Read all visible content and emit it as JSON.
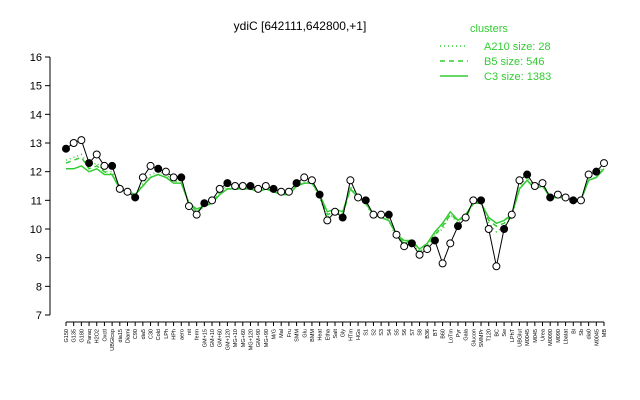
{
  "chart_data": {
    "type": "line",
    "title": "ydiC [642111,642800,+1]",
    "legend_title": "clusters",
    "legend": "top-right",
    "categories": [
      "G150",
      "G135",
      "G180",
      "Paraq",
      "H2O2",
      "Oxctl",
      "UBGlcsp",
      "dia15",
      "Diami",
      "C90",
      "dia5",
      "C30",
      "Cold",
      "LPh",
      "HPh",
      "aero",
      "nit",
      "ferm",
      "GM+15",
      "GM+10",
      "GM+60",
      "GM+120",
      "MG+10",
      "MG+60",
      "MG+120",
      "GM+90",
      "MG+90",
      "M/G",
      "Mal",
      "Fru",
      "SMM",
      "Glu",
      "BMM",
      "Heat",
      "Etha",
      "Salt",
      "Gly",
      "HTm",
      "HGs",
      "S1",
      "S2",
      "S3",
      "S4",
      "S5",
      "S6",
      "S7",
      "S8",
      "B36",
      "BT",
      "B60",
      "LoTm",
      "Pyr",
      "Gala",
      "Glucon",
      "SMMPr",
      "T120",
      "BC",
      "Sw",
      "LPhT",
      "UBGlut",
      "M0045",
      "M045",
      "Urea",
      "M0090",
      "M090",
      "Lbatat",
      "Bl",
      "Sb",
      "dia0",
      "M0045",
      "MB"
    ],
    "color": "#000000",
    "values": [
      12.8,
      13.0,
      13.1,
      12.3,
      12.6,
      12.2,
      12.2,
      11.4,
      11.3,
      11.1,
      11.8,
      12.2,
      12.1,
      12.0,
      11.8,
      11.8,
      10.8,
      10.5,
      10.9,
      11.0,
      11.4,
      11.6,
      11.5,
      11.5,
      11.5,
      11.4,
      11.5,
      11.4,
      11.3,
      11.3,
      11.6,
      11.8,
      11.7,
      11.2,
      10.3,
      10.6,
      10.4,
      11.7,
      11.1,
      11.0,
      10.5,
      10.5,
      10.5,
      9.8,
      9.4,
      9.5,
      9.1,
      9.3,
      9.6,
      8.8,
      9.5,
      10.1,
      10.4,
      11.0,
      11.0,
      10.0,
      8.7,
      10.0,
      10.5,
      11.7,
      11.9,
      11.5,
      11.6,
      11.1,
      11.2,
      11.1,
      11.0,
      11.0,
      11.9,
      12.0,
      12.3
    ],
    "series": [
      {
        "name": "A210 size: 28",
        "color": "#33cc33",
        "linestyle": "dotted",
        "values": [
          12.4,
          12.5,
          12.6,
          12.2,
          12.3,
          12.0,
          12.0,
          11.5,
          11.3,
          11.2,
          11.6,
          11.9,
          12.0,
          11.9,
          11.7,
          11.7,
          10.9,
          10.6,
          10.8,
          10.9,
          11.3,
          11.5,
          11.5,
          11.5,
          11.5,
          11.4,
          11.5,
          11.4,
          11.2,
          11.3,
          11.6,
          11.7,
          11.6,
          11.1,
          10.4,
          10.6,
          10.5,
          11.5,
          11.1,
          10.9,
          10.4,
          10.4,
          10.3,
          9.7,
          9.5,
          9.5,
          9.2,
          9.4,
          9.8,
          10.0,
          10.5,
          10.2,
          10.4,
          10.9,
          10.9,
          10.2,
          9.9,
          10.1,
          10.4,
          11.5,
          11.8,
          11.5,
          11.6,
          11.1,
          11.1,
          11.1,
          11.0,
          11.0,
          11.8,
          11.9,
          12.2
        ]
      },
      {
        "name": "B5 size: 546",
        "color": "#33cc33",
        "linestyle": "dashed",
        "values": [
          12.3,
          12.4,
          12.5,
          12.1,
          12.2,
          12.0,
          11.9,
          11.4,
          11.3,
          11.2,
          11.5,
          11.8,
          11.9,
          11.8,
          11.7,
          11.6,
          10.9,
          10.6,
          10.8,
          10.9,
          11.3,
          11.4,
          11.4,
          11.4,
          11.4,
          11.3,
          11.4,
          11.3,
          11.2,
          11.2,
          11.5,
          11.6,
          11.6,
          11.2,
          10.5,
          10.6,
          10.5,
          11.4,
          11.1,
          10.9,
          10.5,
          10.4,
          10.3,
          9.8,
          9.5,
          9.6,
          9.2,
          9.4,
          9.8,
          10.1,
          10.5,
          10.3,
          10.4,
          10.9,
          10.9,
          10.3,
          10.1,
          10.2,
          10.5,
          11.4,
          11.7,
          11.4,
          11.5,
          11.1,
          11.1,
          11.1,
          11.0,
          11.0,
          11.7,
          11.8,
          12.1
        ]
      },
      {
        "name": "C3 size: 1383",
        "color": "#33cc33",
        "linestyle": "solid",
        "values": [
          12.1,
          12.1,
          12.2,
          12.0,
          12.1,
          11.9,
          11.9,
          11.4,
          11.3,
          11.2,
          11.5,
          11.8,
          11.9,
          11.8,
          11.6,
          11.6,
          10.9,
          10.7,
          10.8,
          10.9,
          11.2,
          11.4,
          11.4,
          11.4,
          11.4,
          11.3,
          11.4,
          11.3,
          11.2,
          11.2,
          11.5,
          11.6,
          11.6,
          11.2,
          10.6,
          10.7,
          10.6,
          11.4,
          11.1,
          10.9,
          10.5,
          10.4,
          10.3,
          9.8,
          9.6,
          9.6,
          9.3,
          9.5,
          9.9,
          10.2,
          10.6,
          10.3,
          10.5,
          10.9,
          10.9,
          10.4,
          10.2,
          10.3,
          10.5,
          11.4,
          11.7,
          11.4,
          11.5,
          11.1,
          11.1,
          11.1,
          11.0,
          11.0,
          11.7,
          11.8,
          12.1
        ]
      }
    ],
    "ylim": [
      7,
      16
    ],
    "yticks": [
      7,
      8,
      9,
      10,
      11,
      12,
      13,
      14,
      15,
      16
    ]
  }
}
